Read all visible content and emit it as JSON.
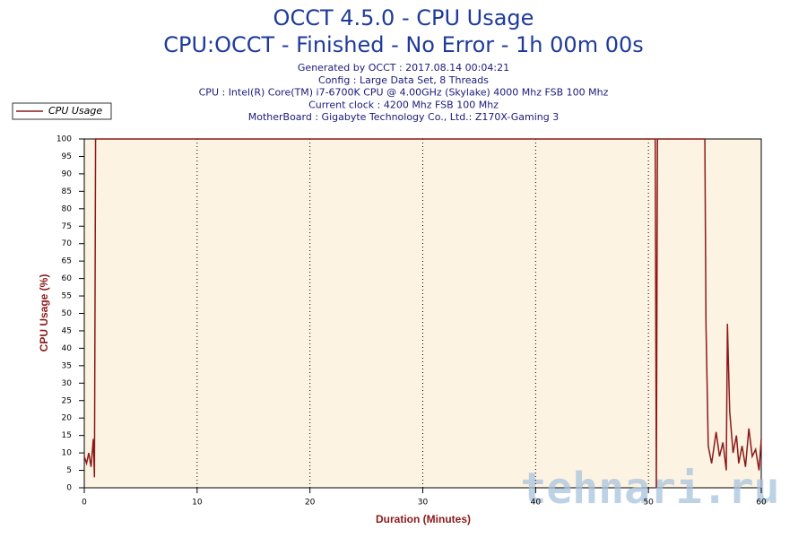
{
  "chart_data": {
    "type": "line",
    "title": "OCCT 4.5.0 - CPU Usage",
    "subtitle": "CPU:OCCT - Finished - No Error - 1h 00m 00s",
    "info": [
      "Generated by OCCT : 2017.08.14 00:04:21",
      "Config : Large Data Set, 8 Threads",
      "CPU : Intel(R) Core(TM) i7-6700K CPU @ 4.00GHz (Skylake) 4000 Mhz FSB 100 Mhz",
      "Current clock : 4200 Mhz FSB 100 Mhz",
      "MotherBoard : Gigabyte Technology Co., Ltd.: Z170X-Gaming 3"
    ],
    "x_label": "Duration (Minutes)",
    "y_label": "CPU Usage (%)",
    "watermark": "tehnari.ru",
    "legend": "top-left",
    "grid": "x",
    "x": [
      0,
      0.2,
      0.4,
      0.6,
      0.8,
      0.9,
      1.0,
      1.1,
      10,
      20,
      30,
      40,
      50,
      50.6,
      50.7,
      50.8,
      51,
      55,
      55.1,
      55.3,
      55.6,
      56,
      56.3,
      56.6,
      56.9,
      57,
      57.2,
      57.5,
      57.8,
      58,
      58.3,
      58.6,
      58.9,
      59.2,
      59.5,
      59.8,
      60
    ],
    "series": [
      {
        "name": "CPU Usage",
        "color": "#8b1a1a",
        "values": [
          9,
          7,
          10,
          6,
          14,
          3,
          100,
          100,
          100,
          100,
          100,
          100,
          100,
          100,
          0,
          100,
          100,
          100,
          47,
          12,
          7,
          16,
          9,
          13,
          5,
          47,
          22,
          10,
          15,
          7,
          12,
          6,
          17,
          9,
          11,
          5,
          14
        ]
      }
    ],
    "xlim": [
      0,
      60
    ],
    "xticks": [
      0,
      10,
      20,
      30,
      40,
      50,
      60
    ],
    "ylim": [
      0,
      100
    ],
    "yticks": [
      0,
      5,
      10,
      15,
      20,
      25,
      30,
      35,
      40,
      45,
      50,
      55,
      60,
      65,
      70,
      75,
      80,
      85,
      90,
      95,
      100
    ]
  }
}
